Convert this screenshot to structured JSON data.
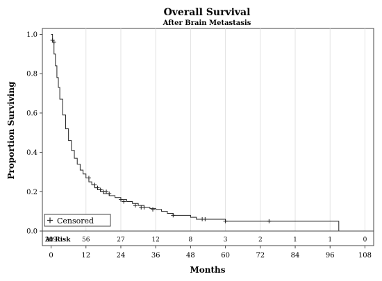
{
  "chart_data": {
    "type": "line",
    "subtype": "kaplan-meier",
    "title": "Overall Survival",
    "subtitle": "After Brain Metastasis",
    "xlabel": "Months",
    "ylabel": "Proportion Surviving",
    "xlim": [
      -3,
      111
    ],
    "ylim": [
      0,
      1.03
    ],
    "x_ticks": [
      0,
      12,
      24,
      36,
      48,
      60,
      72,
      84,
      96,
      108
    ],
    "y_ticks": [
      0.0,
      0.2,
      0.4,
      0.6,
      0.8,
      1.0
    ],
    "y_tick_labels": [
      "0.0",
      "0.2",
      "0.4",
      "0.6",
      "0.8",
      "1.0"
    ],
    "grid": "vertical",
    "legend": {
      "placement": "bottom-left",
      "entries": [
        {
          "symbol": "+",
          "label": "Censored"
        }
      ]
    },
    "at_risk": {
      "label": "At Risk",
      "times": [
        0,
        12,
        24,
        36,
        48,
        60,
        72,
        84,
        96,
        108
      ],
      "counts": [
        "209",
        "56",
        "27",
        "12",
        "8",
        "3",
        "2",
        "1",
        "1",
        "0"
      ]
    },
    "series": [
      {
        "step": true,
        "x": [
          0,
          0.5,
          1,
          1.5,
          2,
          2.5,
          3,
          4,
          5,
          6,
          7,
          8,
          9,
          10,
          11,
          12,
          13,
          14,
          15,
          16,
          17,
          18,
          20,
          22,
          24,
          26,
          28,
          30,
          32,
          34,
          36,
          38,
          40,
          42,
          48,
          50,
          60,
          70,
          80,
          90,
          99
        ],
        "y": [
          1.0,
          0.96,
          0.9,
          0.84,
          0.78,
          0.73,
          0.67,
          0.59,
          0.52,
          0.46,
          0.41,
          0.37,
          0.34,
          0.31,
          0.29,
          0.27,
          0.25,
          0.235,
          0.22,
          0.21,
          0.2,
          0.19,
          0.18,
          0.17,
          0.16,
          0.15,
          0.14,
          0.13,
          0.12,
          0.115,
          0.11,
          0.1,
          0.09,
          0.08,
          0.07,
          0.06,
          0.05,
          0.05,
          0.05,
          0.05,
          0.05
        ],
        "end_x": 99
      }
    ],
    "censored": {
      "x": [
        0.5,
        1,
        13,
        15,
        16,
        17,
        18,
        19,
        20,
        24,
        25,
        29,
        31,
        32,
        35,
        42,
        52,
        53,
        60,
        75
      ],
      "y": [
        0.97,
        0.96,
        0.27,
        0.235,
        0.22,
        0.21,
        0.2,
        0.2,
        0.19,
        0.16,
        0.15,
        0.13,
        0.12,
        0.12,
        0.11,
        0.08,
        0.06,
        0.06,
        0.05,
        0.05
      ]
    }
  }
}
